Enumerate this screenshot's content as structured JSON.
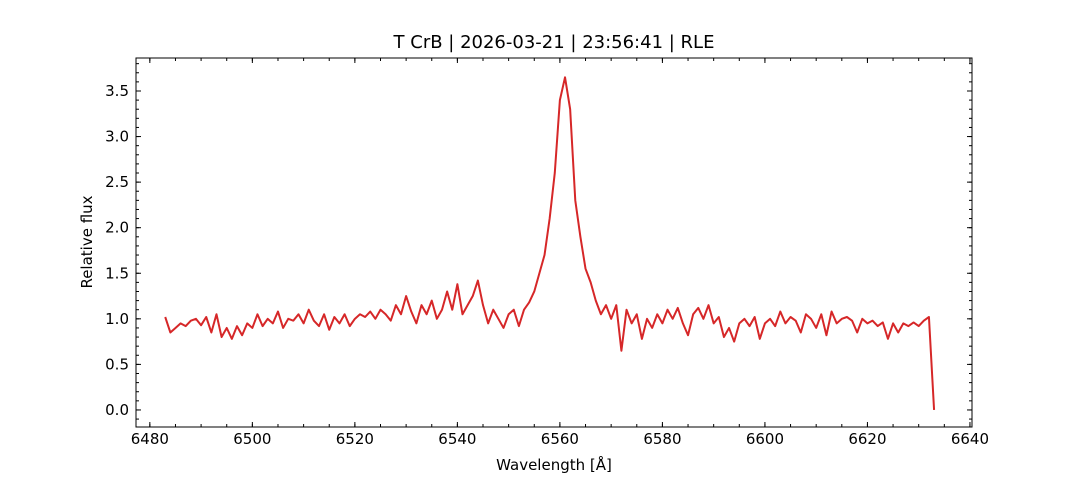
{
  "chart_data": {
    "type": "line",
    "title": "T CrB | 2026-03-21 | 23:56:41 | RLE",
    "xlabel": "Wavelength [Å]",
    "ylabel": "Relative flux",
    "color": "#d62728",
    "x": [
      6483,
      6484,
      6485,
      6486,
      6487,
      6488,
      6489,
      6490,
      6491,
      6492,
      6493,
      6494,
      6495,
      6496,
      6497,
      6498,
      6499,
      6500,
      6501,
      6502,
      6503,
      6504,
      6505,
      6506,
      6507,
      6508,
      6509,
      6510,
      6511,
      6512,
      6513,
      6514,
      6515,
      6516,
      6517,
      6518,
      6519,
      6520,
      6521,
      6522,
      6523,
      6524,
      6525,
      6526,
      6527,
      6528,
      6529,
      6530,
      6531,
      6532,
      6533,
      6534,
      6535,
      6536,
      6537,
      6538,
      6539,
      6540,
      6541,
      6542,
      6543,
      6544,
      6545,
      6546,
      6547,
      6548,
      6549,
      6550,
      6551,
      6552,
      6553,
      6554,
      6555,
      6556,
      6557,
      6558,
      6559,
      6560,
      6561,
      6562,
      6563,
      6564,
      6565,
      6566,
      6567,
      6568,
      6569,
      6570,
      6571,
      6572,
      6573,
      6574,
      6575,
      6576,
      6577,
      6578,
      6579,
      6580,
      6581,
      6582,
      6583,
      6584,
      6585,
      6586,
      6587,
      6588,
      6589,
      6590,
      6591,
      6592,
      6593,
      6594,
      6595,
      6596,
      6597,
      6598,
      6599,
      6600,
      6601,
      6602,
      6603,
      6604,
      6605,
      6606,
      6607,
      6608,
      6609,
      6610,
      6611,
      6612,
      6613,
      6614,
      6615,
      6616,
      6617,
      6618,
      6619,
      6620,
      6621,
      6622,
      6623,
      6624,
      6625,
      6626,
      6627,
      6628,
      6629,
      6630,
      6631,
      6632,
      6633
    ],
    "values": [
      1.02,
      0.85,
      0.9,
      0.95,
      0.92,
      0.98,
      1.0,
      0.93,
      1.02,
      0.85,
      1.05,
      0.8,
      0.9,
      0.78,
      0.92,
      0.82,
      0.95,
      0.9,
      1.05,
      0.92,
      1.0,
      0.95,
      1.08,
      0.9,
      1.0,
      0.98,
      1.05,
      0.95,
      1.1,
      0.98,
      0.92,
      1.05,
      0.88,
      1.02,
      0.95,
      1.05,
      0.92,
      1.0,
      1.05,
      1.02,
      1.08,
      1.0,
      1.1,
      1.05,
      0.98,
      1.15,
      1.05,
      1.25,
      1.08,
      0.95,
      1.15,
      1.05,
      1.2,
      1.0,
      1.1,
      1.3,
      1.1,
      1.38,
      1.05,
      1.15,
      1.25,
      1.42,
      1.15,
      0.95,
      1.1,
      1.0,
      0.9,
      1.05,
      1.1,
      0.92,
      1.1,
      1.18,
      1.3,
      1.5,
      1.7,
      2.1,
      2.6,
      3.4,
      3.65,
      3.3,
      2.3,
      1.9,
      1.55,
      1.4,
      1.2,
      1.05,
      1.15,
      1.0,
      1.15,
      0.65,
      1.1,
      0.95,
      1.05,
      0.78,
      1.0,
      0.9,
      1.05,
      0.95,
      1.1,
      1.0,
      1.12,
      0.95,
      0.82,
      1.05,
      1.12,
      1.0,
      1.15,
      0.95,
      1.02,
      0.8,
      0.9,
      0.75,
      0.95,
      1.0,
      0.92,
      1.02,
      0.78,
      0.95,
      1.0,
      0.92,
      1.08,
      0.95,
      1.02,
      0.98,
      0.85,
      1.05,
      1.0,
      0.9,
      1.05,
      0.82,
      1.08,
      0.95,
      1.0,
      1.02,
      0.98,
      0.85,
      1.0,
      0.95,
      0.98,
      0.92,
      0.96,
      0.78,
      0.95,
      0.85,
      0.95,
      0.92,
      0.96,
      0.92,
      0.98,
      1.02,
      0.0
    ],
    "xlim": [
      6477.3,
      6640.4
    ],
    "ylim": [
      -0.187,
      3.862
    ],
    "xticks": [
      6480,
      6500,
      6520,
      6540,
      6560,
      6580,
      6600,
      6620,
      6640
    ],
    "yticks": [
      {
        "value": 0,
        "label": "0.0"
      },
      0.5,
      {
        "value": 1,
        "label": "1.0"
      },
      1.5,
      {
        "value": 2,
        "label": "2.0"
      },
      2.5,
      {
        "value": 3,
        "label": "3.0"
      },
      3.5
    ],
    "xminor_ticks": [
      6480,
      6485,
      6490,
      6495,
      6500,
      6505,
      6510,
      6515,
      6520,
      6525,
      6530,
      6535,
      6540,
      6545,
      6550,
      6555,
      6560,
      6565,
      6570,
      6575,
      6580,
      6585,
      6590,
      6595,
      6600,
      6605,
      6610,
      6615,
      6620,
      6625,
      6630,
      6635,
      6640
    ],
    "yminor_ticks": [
      -0.1,
      0,
      0.1,
      0.2,
      0.3,
      0.4,
      0.5,
      0.6,
      0.7,
      0.8,
      0.9,
      1,
      1.1,
      1.2,
      1.3,
      1.4,
      1.5,
      1.6,
      1.7,
      1.8,
      1.9,
      2,
      2.1,
      2.2,
      2.3,
      2.4,
      2.5,
      2.6,
      2.7,
      2.8,
      2.9,
      3,
      3.1,
      3.2,
      3.3,
      3.4,
      3.5,
      3.6,
      3.7,
      3.8
    ],
    "grid": false
  }
}
